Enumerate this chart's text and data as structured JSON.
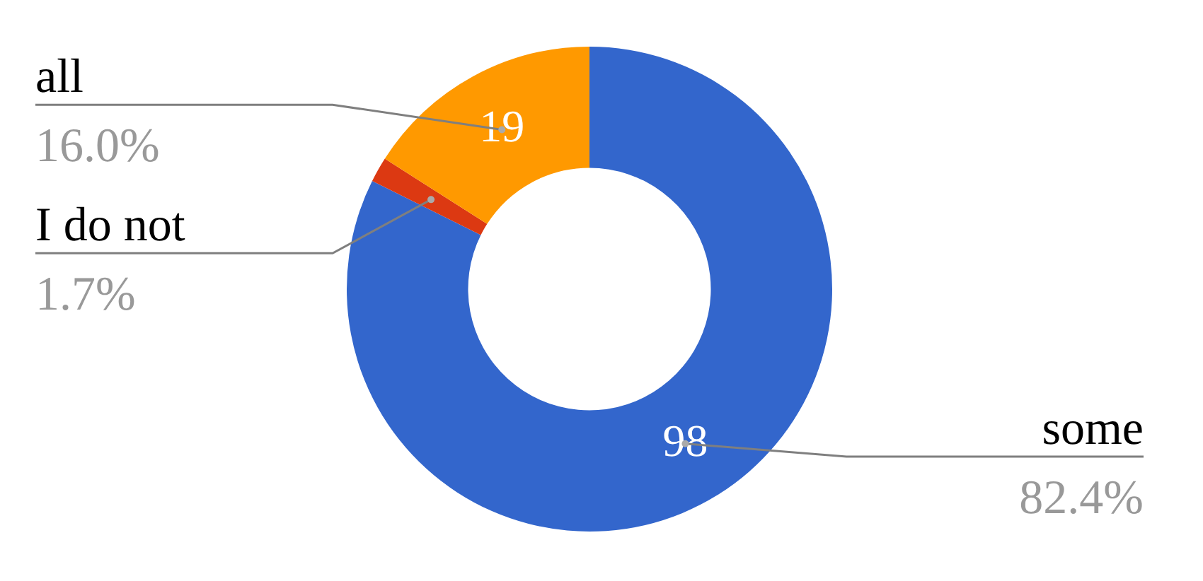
{
  "chart_data": {
    "type": "donut",
    "categories": [
      "some",
      "I do not",
      "all"
    ],
    "values": [
      98,
      2,
      19
    ],
    "colors": [
      "#3366cc",
      "#dc3912",
      "#ff9900"
    ],
    "value_labels": [
      "98",
      null,
      "19"
    ],
    "annotations": [
      {
        "text": "82.4%",
        "x": "some"
      },
      {
        "text": "1.7%",
        "x": "I do not"
      },
      {
        "text": "16.0%",
        "x": "all"
      }
    ]
  }
}
